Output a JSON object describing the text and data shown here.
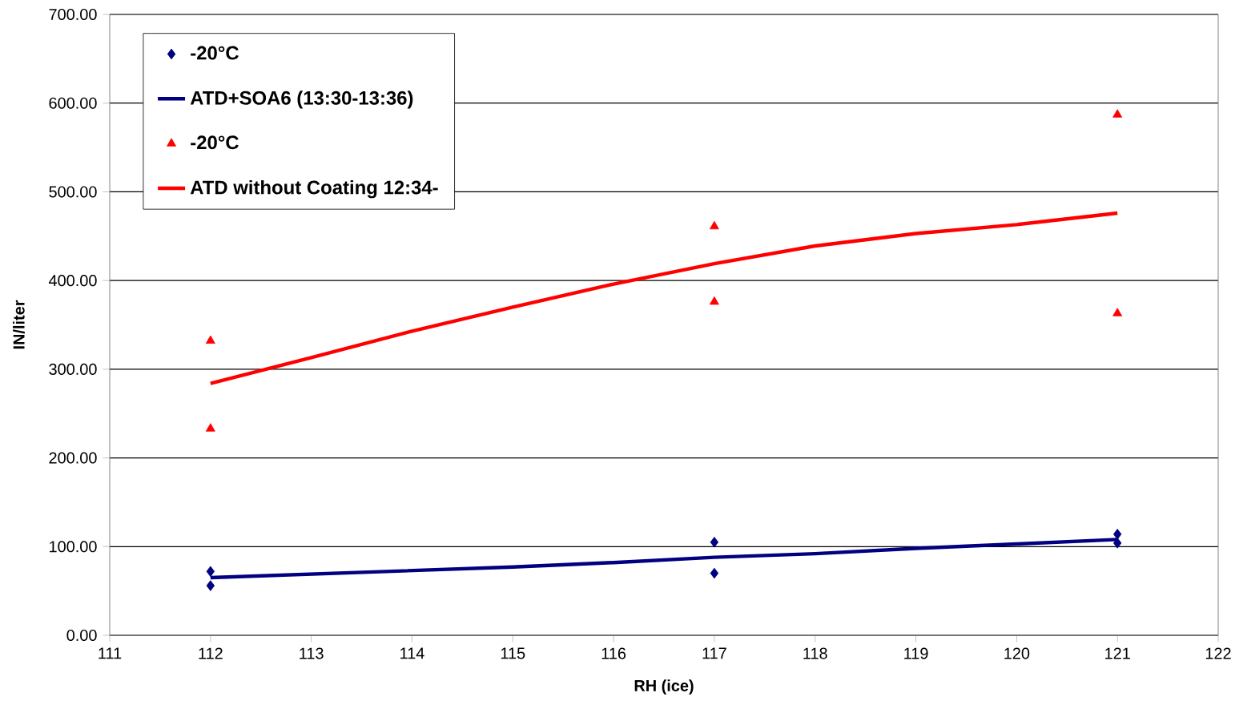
{
  "chart_data": {
    "type": "scatter",
    "xlabel": "RH (ice)",
    "ylabel": "IN/liter",
    "xlim": [
      111,
      122
    ],
    "xticks": [
      111,
      112,
      113,
      114,
      115,
      116,
      117,
      118,
      119,
      120,
      121,
      122
    ],
    "ylim": [
      0,
      700
    ],
    "yticks": [
      {
        "value": 0,
        "label": "0.00"
      },
      {
        "value": 100,
        "label": "100.00"
      },
      {
        "value": 200,
        "label": "200.00"
      },
      {
        "value": 300,
        "label": "300.00"
      },
      {
        "value": 400,
        "label": "400.00"
      },
      {
        "value": 500,
        "label": "500.00"
      },
      {
        "value": 600,
        "label": "600.00"
      },
      {
        "value": 700,
        "label": "700.00"
      }
    ],
    "grid": "y",
    "legend": "top left",
    "series": [
      {
        "name": "-20°C",
        "type": "scatter",
        "marker": "diamond",
        "color": "#000080",
        "x": [
          112,
          112,
          117,
          117,
          121,
          121
        ],
        "values": [
          72,
          56,
          105,
          70,
          114,
          104
        ]
      },
      {
        "name": "ATD+SOA6 (13:30-13:36)",
        "type": "line",
        "line_style": "solid",
        "color": "#000080",
        "x": [
          112,
          113,
          114,
          115,
          116,
          117,
          118,
          119,
          120,
          121
        ],
        "values": [
          65,
          69,
          73,
          77,
          82,
          88,
          92,
          98,
          103,
          108
        ]
      },
      {
        "name": "-20°C",
        "type": "scatter",
        "marker": "triangle",
        "color": "#ff0000",
        "x": [
          112,
          112,
          117,
          117,
          121,
          121
        ],
        "values": [
          332,
          233,
          461,
          376,
          587,
          363
        ]
      },
      {
        "name": "ATD without Coating 12:34-",
        "type": "line",
        "line_style": "solid",
        "color": "#ff0000",
        "x": [
          112,
          113,
          114,
          115,
          116,
          117,
          118,
          119,
          120,
          121
        ],
        "values": [
          284,
          313,
          343,
          370,
          396,
          419,
          439,
          453,
          463,
          476
        ]
      }
    ]
  }
}
